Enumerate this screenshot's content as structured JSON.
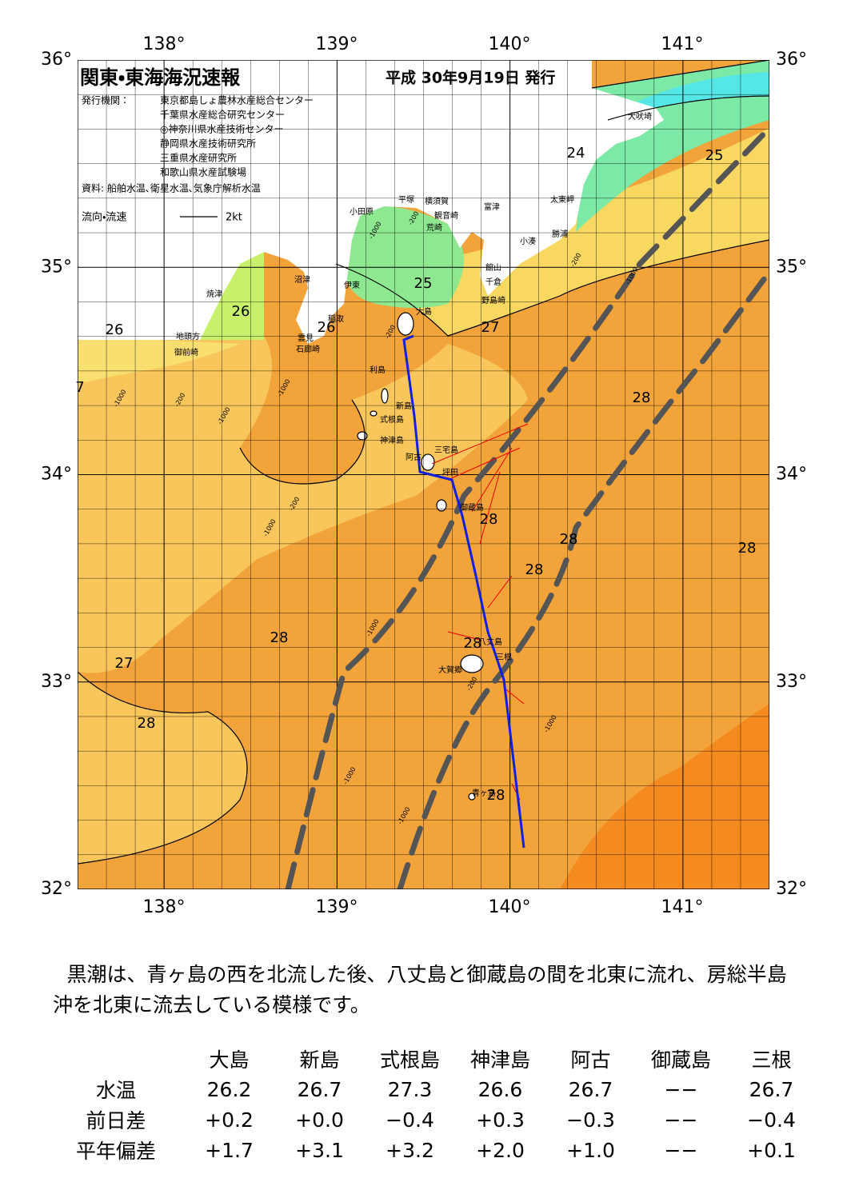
{
  "header": {
    "title": "関東・東海海況速報",
    "date": "平成 30年9月19日 発行",
    "publisher_label": "発行機関：",
    "publishers": [
      "東京都島しょ農林水産総合センター",
      "千葉県水産総合研究センター",
      "◎神奈川県水産技術センター",
      "静岡県水産技術研究所",
      "三重県水産研究所",
      "和歌山県水産試験場"
    ],
    "source": "資料: 船舶水温､衛星水温､気象庁解析水温",
    "legend_label": "流向・流速",
    "legend_scale": "2kt"
  },
  "map": {
    "lon_labels": [
      "138°",
      "139°",
      "140°",
      "141°"
    ],
    "lat_labels": [
      "36°",
      "35°",
      "34°",
      "33°",
      "32°"
    ],
    "places": [
      "犬吠埼",
      "太東岬",
      "勝浦",
      "小湊",
      "富津",
      "横須賀",
      "平塚",
      "観音崎",
      "荒崎",
      "小田原",
      "館山",
      "千倉",
      "野島崎",
      "沼津",
      "伊東",
      "大島",
      "焼津",
      "稲取",
      "雲見",
      "石廊崎",
      "地頭方",
      "御前崎",
      "利島",
      "新島",
      "式根島",
      "神津島",
      "三宅島",
      "阿古",
      "坪田",
      "御蔵島",
      "八丈島",
      "三根",
      "大賀郷",
      "青ヶ島"
    ],
    "temp_labels": [
      "26",
      "26",
      "26",
      "25",
      "27",
      "24",
      "25",
      "28",
      "28",
      "28",
      "28",
      "28",
      "28",
      "27",
      "28",
      "28",
      "28",
      "7"
    ],
    "depth_labels": [
      "-1000",
      "-200",
      "-1000",
      "-1000",
      "-200",
      "-1000",
      "-1000",
      "-1000",
      "-1000",
      "-1000",
      "-1000",
      "-200",
      "-200",
      "-1000",
      "-200",
      "-200"
    ]
  },
  "description": "黒潮は、青ヶ島の西を北流した後、八丈島と御蔵島の間を北東に流れ、房総半島沖を北東に流去している模様です。",
  "table": {
    "header": [
      "大島",
      "新島",
      "式根島",
      "神津島",
      "阿古",
      "御蔵島",
      "三根"
    ],
    "rows": [
      [
        "水温",
        "26.2",
        "26.7",
        "27.3",
        "26.6",
        "26.7",
        "−−",
        "26.7"
      ],
      [
        "前日差",
        "+0.2",
        "+0.0",
        "−0.4",
        "+0.3",
        "−0.3",
        "−−",
        "−0.4"
      ],
      [
        "平年偏差",
        "+1.7",
        "+3.1",
        "+3.2",
        "+2.0",
        "+1.0",
        "−−",
        "+0.1"
      ]
    ]
  }
}
